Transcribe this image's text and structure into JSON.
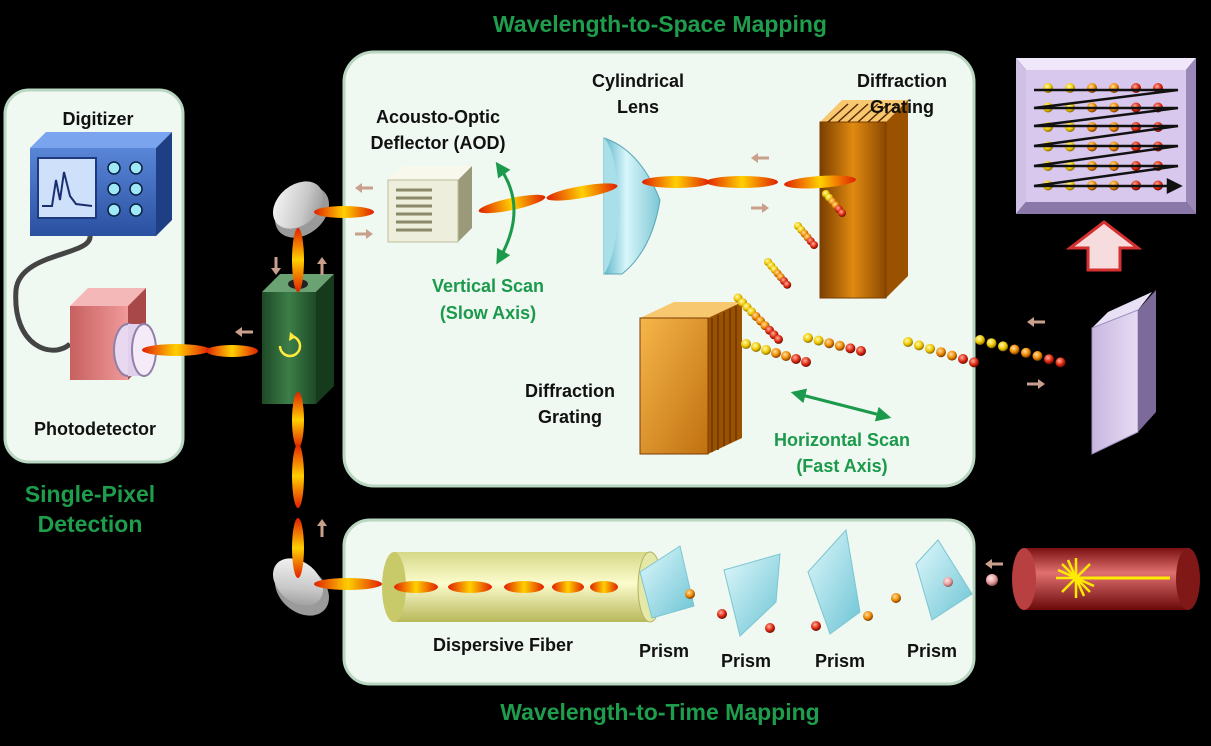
{
  "titles": {
    "space_mapping": "Wavelength-to-Space Mapping",
    "time_mapping": "Wavelength-to-Time Mapping",
    "single_pixel_line1": "Single-Pixel",
    "single_pixel_line2": "Detection"
  },
  "labels": {
    "digitizer": "Digitizer",
    "photodetector": "Photodetector",
    "aod_line1": "Acousto-Optic",
    "aod_line2": "Deflector (AOD)",
    "cyl_lens_line1": "Cylindrical",
    "cyl_lens_line2": "Lens",
    "grating_top_line1": "Diffraction",
    "grating_top_line2": "Grating",
    "grating_mid_line1": "Diffraction",
    "grating_mid_line2": "Grating",
    "vertical_scan_line1": "Vertical Scan",
    "vertical_scan_line2": "(Slow Axis)",
    "horizontal_scan_line1": "Horizontal Scan",
    "horizontal_scan_line2": "(Fast Axis)",
    "dispersive_fiber": "Dispersive Fiber",
    "prism_1": "Prism",
    "prism_2": "Prism",
    "prism_3": "Prism",
    "prism_4": "Prism"
  },
  "colors": {
    "panel_fill": "#f0f8f2",
    "panel_border": "#b9d6c0",
    "title_green": "#1e9e4c",
    "label_green": "#1a9a4a",
    "arrow_tan": "#c9a08c"
  }
}
